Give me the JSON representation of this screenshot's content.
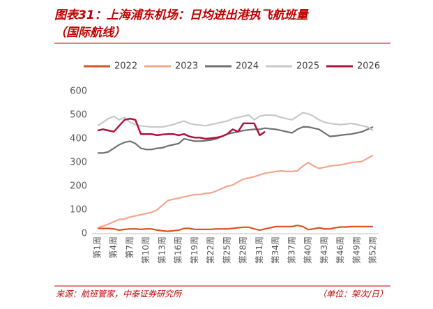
{
  "chart_data": {
    "type": "line",
    "title": "图表31：上海浦东机场：日均进出港执飞航班量",
    "subtitle": "（国际航线）",
    "source": "来源：航班管家，中泰证券研究所",
    "unit": "（单位：架次/日）",
    "categories": [
      "第1周",
      null,
      null,
      "第4周",
      null,
      null,
      "第7周",
      null,
      null,
      "第10周",
      null,
      null,
      "第13周",
      null,
      null,
      "第16周",
      null,
      null,
      "第19周",
      null,
      null,
      "第22周",
      null,
      null,
      "第25周",
      null,
      null,
      "第28周",
      null,
      null,
      "第31周",
      null,
      null,
      "第34周",
      null,
      null,
      "第37周",
      null,
      null,
      "第40周",
      null,
      null,
      "第43周",
      null,
      null,
      "第46周",
      null,
      null,
      "第49周",
      null,
      null,
      "第52周"
    ],
    "ylim": [
      0,
      600
    ],
    "yticks": [
      0,
      100,
      200,
      300,
      400,
      500,
      600
    ],
    "legend": "top",
    "series": [
      {
        "name": "2022",
        "color": "#d9531e",
        "values": [
          22,
          22,
          22,
          20,
          15,
          18,
          20,
          20,
          18,
          20,
          20,
          15,
          12,
          10,
          12,
          15,
          22,
          22,
          18,
          18,
          18,
          18,
          20,
          20,
          20,
          22,
          25,
          27,
          27,
          20,
          15,
          20,
          25,
          30,
          30,
          30,
          30,
          35,
          30,
          17,
          20,
          25,
          20,
          20,
          25,
          28,
          28,
          30,
          30,
          30,
          30,
          30
        ]
      },
      {
        "name": "2023",
        "color": "#f4a58c",
        "values": [
          25,
          32,
          40,
          50,
          60,
          62,
          70,
          75,
          80,
          85,
          90,
          100,
          120,
          140,
          145,
          150,
          155,
          160,
          165,
          165,
          170,
          172,
          180,
          190,
          200,
          205,
          218,
          230,
          235,
          240,
          248,
          255,
          258,
          262,
          265,
          262,
          262,
          265,
          285,
          300,
          285,
          275,
          280,
          285,
          288,
          290,
          295,
          300,
          302,
          305,
          318,
          330
        ]
      },
      {
        "name": "2024",
        "color": "#707070",
        "values": [
          340,
          340,
          345,
          360,
          375,
          385,
          390,
          380,
          360,
          355,
          355,
          360,
          362,
          370,
          375,
          380,
          400,
          395,
          390,
          390,
          392,
          395,
          400,
          410,
          420,
          425,
          430,
          435,
          438,
          440,
          440,
          445,
          442,
          440,
          435,
          430,
          425,
          440,
          450,
          450,
          445,
          440,
          425,
          410,
          412,
          415,
          418,
          420,
          425,
          430,
          440,
          450
        ]
      },
      {
        "name": "2025",
        "color": "#c8c8c8",
        "values": [
          455,
          470,
          485,
          495,
          480,
          490,
          470,
          460,
          455,
          452,
          450,
          450,
          450,
          455,
          460,
          468,
          475,
          465,
          460,
          458,
          455,
          460,
          465,
          470,
          475,
          485,
          490,
          495,
          500,
          480,
          495,
          500,
          500,
          498,
          490,
          485,
          480,
          495,
          510,
          505,
          495,
          480,
          470,
          465,
          462,
          460,
          462,
          465,
          460,
          455,
          450,
          435
        ]
      },
      {
        "name": "2026",
        "color": "#b0123c",
        "values": [
          435,
          440,
          435,
          430,
          455,
          480,
          485,
          480,
          420,
          420,
          420,
          415,
          418,
          420,
          420,
          415,
          420,
          410,
          405,
          405,
          400,
          402,
          405,
          410,
          420,
          440,
          430,
          465,
          465,
          465,
          415,
          430,
          null,
          null,
          null,
          null,
          null,
          null,
          null,
          null,
          null,
          null,
          null,
          null,
          null,
          null,
          null,
          null,
          null,
          null,
          null,
          null
        ]
      }
    ]
  }
}
